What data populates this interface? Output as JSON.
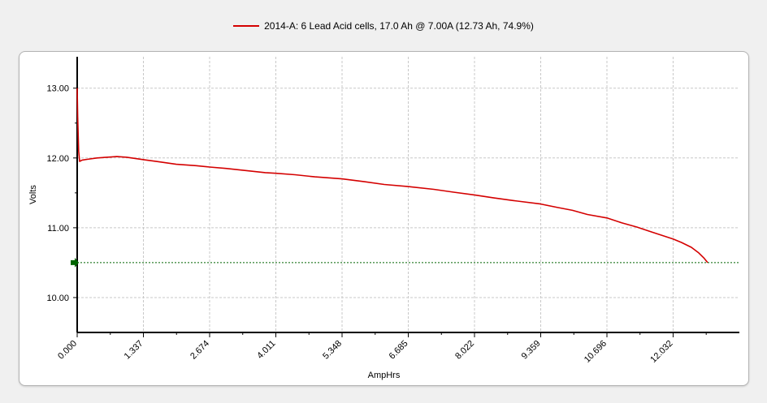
{
  "legend": {
    "label": "2014-A: 6 Lead Acid cells, 17.0 Ah @ 7.00A (12.73 Ah, 74.9%)",
    "color": "#d40000"
  },
  "chart_data": {
    "type": "line",
    "xlabel": "AmpHrs",
    "ylabel": "Volts",
    "xlim": [
      0.0,
      13.37
    ],
    "ylim": [
      9.5,
      13.45
    ],
    "x_ticks": [
      "0.000",
      "1.337",
      "2.674",
      "4.011",
      "5.348",
      "6.685",
      "8.022",
      "9.359",
      "10.696",
      "12.032"
    ],
    "y_ticks": [
      "10.00",
      "11.00",
      "12.00",
      "13.00"
    ],
    "grid": true,
    "series": [
      {
        "name": "2014-A: 6 Lead Acid cells, 17.0 Ah @ 7.00A (12.73 Ah, 74.9%)",
        "color": "#d40000",
        "x": [
          0.0,
          0.01,
          0.03,
          0.05,
          0.1,
          0.2,
          0.4,
          0.6,
          0.8,
          1.0,
          1.2,
          1.4,
          1.6,
          1.8,
          2.0,
          2.2,
          2.4,
          2.674,
          3.0,
          3.4,
          3.8,
          4.011,
          4.4,
          4.8,
          5.348,
          5.8,
          6.2,
          6.685,
          7.2,
          7.6,
          8.022,
          8.4,
          8.8,
          9.359,
          9.7,
          10.0,
          10.3,
          10.696,
          11.0,
          11.3,
          11.6,
          11.9,
          12.032,
          12.2,
          12.4,
          12.55,
          12.65,
          12.73
        ],
        "y": [
          13.0,
          12.6,
          12.1,
          11.95,
          11.97,
          11.98,
          12.0,
          12.01,
          12.02,
          12.01,
          11.99,
          11.97,
          11.95,
          11.93,
          11.91,
          11.9,
          11.89,
          11.87,
          11.85,
          11.82,
          11.79,
          11.78,
          11.76,
          11.73,
          11.7,
          11.66,
          11.62,
          11.59,
          11.55,
          11.51,
          11.47,
          11.43,
          11.39,
          11.34,
          11.29,
          11.25,
          11.19,
          11.14,
          11.07,
          11.01,
          10.94,
          10.87,
          10.84,
          10.79,
          10.72,
          10.64,
          10.57,
          10.5
        ]
      },
      {
        "name": "",
        "color": "#006400",
        "type": "hline",
        "y": 10.5
      }
    ]
  }
}
